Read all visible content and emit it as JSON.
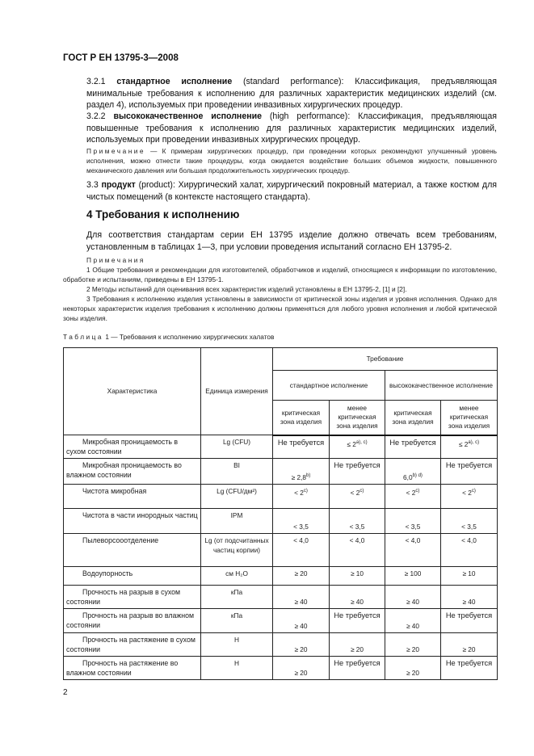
{
  "header": "ГОСТ Р ЕН 13795-3—2008",
  "def_321": {
    "num": "3.2.1",
    "term": "стандартное исполнение",
    "rest": " (standard performance):  Классификация, предъявляющая минимальные требования к исполнению для различных характеристик медицинских изделий (см. раздел 4), используемых при проведении инвазивных хирургических процедур."
  },
  "def_322": {
    "num": "3.2.2",
    "term": "высококачественное исполнение",
    "rest": " (high performance): Классификация, предъявляющая повышенные требования к исполнению для различных характеристик медицинских изделий, используемых при проведении инвазивных хирургических процедур."
  },
  "note1": {
    "label": "Примечание",
    "text": " — К примерам хирургических процедур, при проведении которых рекомендуют улучшенный уровень исполнения, можно отнести такие процедуры, когда ожидается воздействие больших объемов жидкости, повышенного механического давления или большая продолжительность хирургических процедур."
  },
  "def_33": {
    "num": "3.3",
    "term": "продукт",
    "rest": " (product):  Хирургический халат, хирургический покровный материал, а также костюм для чистых помещений (в контексте настоящего стандарта)."
  },
  "section4": {
    "title": "4  Требования к исполнению",
    "body": "Для соответствия стандартам серии ЕН 13795 изделие должно отвечать всем требованиям, установленным в таблицах 1—3, при условии проведения испытаний согласно ЕН 13795-2."
  },
  "notes": {
    "label": "Примечания",
    "items": [
      "1  Общие требования и рекомендации для изготовителей, обработчиков и изделий, относящиеся к информации по изготовлению, обработке и испытаниям, приведены в ЕН 13795-1.",
      "2  Методы испытаний для оценивания всех характеристик изделий установлены в ЕН 13795-2, [1] и [2].",
      "3  Требования к исполнению изделия установлены в зависимости от критической зоны изделия и уровня исполнения. Однако для некоторых характеристик изделия требования к исполнению должны применяться для любого уровня исполнения и любой критической зоны изделия."
    ]
  },
  "table": {
    "caption_label": "Таблица",
    "caption": " 1 — Требования к исполнению хирургических халатов",
    "headers": {
      "characteristic": "Характеристика",
      "unit": "Единица измерения",
      "requirement": "Требование",
      "standard": "стандартное исполнение",
      "high": "высококачественное исполнение",
      "critical": "критическая зона изделия",
      "less_critical": "менее критическая зона изделия"
    },
    "rows": [
      {
        "name": "Микробная проницаемость в сухом состоянии",
        "unit": "Lg (CFU)",
        "cells": [
          {
            "v": "Не требуется"
          },
          {
            "v": "≤ 2",
            "s": "a), c)"
          },
          {
            "v": "Не требуется"
          },
          {
            "v": "≤ 2",
            "s": "a), c)"
          }
        ]
      },
      {
        "name": "Микробная проницаемость во влажном состоянии",
        "unit": "BI",
        "cells": [
          {
            "v": "≥ 2,8",
            "s": "b)"
          },
          {
            "v": "Не требуется"
          },
          {
            "v": "6,0",
            "s": "b) d)"
          },
          {
            "v": "Не требуется"
          }
        ]
      },
      {
        "name": "Чистота микробная",
        "unit": "Lg (CFU/дм²)",
        "cells": [
          {
            "v": "< 2",
            "s": "c)"
          },
          {
            "v": "< 2",
            "s": "c)"
          },
          {
            "v": "< 2",
            "s": "c)"
          },
          {
            "v": "< 2",
            "s": "c)"
          }
        ]
      },
      {
        "name": "Чистота в части инородных частиц",
        "unit": "IPM",
        "cells": [
          {
            "v": "< 3,5"
          },
          {
            "v": "< 3,5"
          },
          {
            "v": "< 3,5"
          },
          {
            "v": "< 3,5"
          }
        ]
      },
      {
        "name": "Пылеворсооотделение",
        "unit": "Lg (от подсчитанных частиц корпии)",
        "cells": [
          {
            "v": "< 4,0"
          },
          {
            "v": "< 4,0"
          },
          {
            "v": "< 4,0"
          },
          {
            "v": "< 4,0"
          }
        ]
      },
      {
        "name": "Водоупорность",
        "unit": "см H₂O",
        "cells": [
          {
            "v": "≥ 20"
          },
          {
            "v": "≥ 10"
          },
          {
            "v": "≥ 100"
          },
          {
            "v": "≥ 10"
          }
        ]
      },
      {
        "name": "Прочность на разрыв в сухом состоянии",
        "unit": "кПа",
        "cells": [
          {
            "v": "≥ 40"
          },
          {
            "v": "≥ 40"
          },
          {
            "v": "≥ 40"
          },
          {
            "v": "≥ 40"
          }
        ]
      },
      {
        "name": "Прочность на разрыв во влажном состоянии",
        "unit": "кПа",
        "cells": [
          {
            "v": "≥ 40"
          },
          {
            "v": "Не требуется"
          },
          {
            "v": "≥ 40"
          },
          {
            "v": "Не требуется"
          }
        ]
      },
      {
        "name": "Прочность на растяжение в сухом состоянии",
        "unit": "Н",
        "cells": [
          {
            "v": "≥ 20"
          },
          {
            "v": "≥ 20"
          },
          {
            "v": "≥ 20"
          },
          {
            "v": "≥ 20"
          }
        ]
      },
      {
        "name": "Прочность на растяжение во влажном состоянии",
        "unit": "Н",
        "cells": [
          {
            "v": "≥ 20"
          },
          {
            "v": "Не требуется"
          },
          {
            "v": "≥ 20"
          },
          {
            "v": "Не требуется"
          }
        ]
      }
    ]
  },
  "page_number": "2"
}
